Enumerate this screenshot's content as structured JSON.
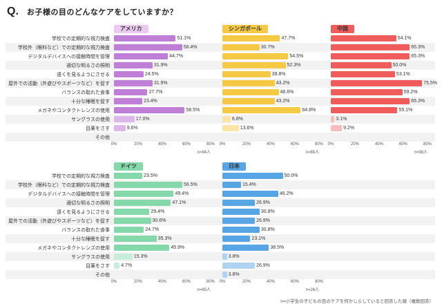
{
  "header": {
    "q_mark": "Q.",
    "title": "お子様の目のどんなケアをしていますか？"
  },
  "footnote": "n=小学生の子どもの目のケアを何かしらしていると回答した親（複数回答）",
  "chart_data": {
    "type": "bar",
    "orientation": "horizontal",
    "title": "お子様の目のどんなケアをしていますか？",
    "xlabel": "",
    "ylabel": "",
    "xlim": [
      0,
      80
    ],
    "x_ticks": [
      "0%",
      "20%",
      "40%",
      "60%",
      "80%"
    ],
    "grid": false,
    "legend_position": "panel-badges-top",
    "light_rows_start_index": 9,
    "categories": [
      "学校での定期的な視力検査",
      "学校外（眼科など）での定期的な視力検査",
      "デジタルデバイスへの接触時間を管理",
      "適切な明るさの照明",
      "遠くを見るようにさせる",
      "屋外での活動（外遊びやスポーツなど）を促す",
      "バランスの取れた食事",
      "十分な睡眠を促す",
      "メガネやコンタクトレンズの使用",
      "サングラスの使用",
      "目薬をさす",
      "その他"
    ],
    "panels": [
      {
        "name": "アメリカ",
        "n_label": "n=94人",
        "color": "#bf7fd6",
        "color_light": "#ddb7ec",
        "badge_bg": "#ecc9f0",
        "values": [
          51.1,
          56.4,
          44.7,
          31.9,
          24.5,
          31.9,
          27.7,
          23.4,
          58.5,
          17.0,
          9.6,
          null
        ]
      },
      {
        "name": "シンガポール",
        "n_label": "n=88人",
        "color": "#f6c944",
        "color_light": "#fae4a6",
        "badge_bg": "#f6c944",
        "values": [
          47.7,
          30.7,
          54.5,
          52.3,
          39.8,
          43.2,
          46.6,
          43.2,
          64.8,
          6.8,
          13.6,
          null
        ]
      },
      {
        "name": "中国",
        "n_label": "n=98人",
        "color": "#f05c5c",
        "color_light": "#f9bcbc",
        "badge_bg": "#f05c5c",
        "values": [
          54.1,
          65.3,
          65.3,
          50.0,
          53.1,
          75.5,
          59.2,
          65.3,
          55.1,
          3.1,
          9.2,
          null
        ]
      },
      {
        "name": "ドイツ",
        "n_label": "n=85人",
        "color": "#84d8aa",
        "color_light": "#c8edd9",
        "badge_bg": "#84d8aa",
        "values": [
          23.5,
          56.5,
          49.4,
          47.1,
          29.4,
          30.6,
          24.7,
          35.3,
          45.9,
          15.3,
          4.7,
          null
        ]
      },
      {
        "name": "日本",
        "n_label": "n=26人",
        "color": "#57a5e5",
        "color_light": "#aed3f2",
        "badge_bg": "#57a5e5",
        "values": [
          50.0,
          15.4,
          46.2,
          26.9,
          30.8,
          26.9,
          30.8,
          23.1,
          38.5,
          3.8,
          26.9,
          3.8
        ]
      }
    ],
    "groups": [
      {
        "panel_indexes": [
          0,
          1,
          2
        ]
      },
      {
        "panel_indexes": [
          3,
          4
        ]
      }
    ]
  }
}
